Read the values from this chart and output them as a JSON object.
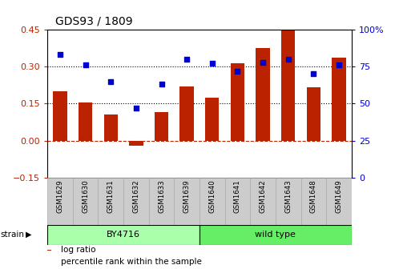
{
  "title": "GDS93 / 1809",
  "categories": [
    "GSM1629",
    "GSM1630",
    "GSM1631",
    "GSM1632",
    "GSM1633",
    "GSM1639",
    "GSM1640",
    "GSM1641",
    "GSM1642",
    "GSM1643",
    "GSM1648",
    "GSM1649"
  ],
  "log_ratio": [
    0.2,
    0.155,
    0.105,
    -0.02,
    0.115,
    0.22,
    0.175,
    0.315,
    0.375,
    0.455,
    0.215,
    0.335
  ],
  "percentile_rank": [
    83,
    76,
    65,
    47,
    63,
    80,
    77,
    72,
    78,
    80,
    70,
    76
  ],
  "bar_color": "#bb2200",
  "dot_color": "#0000cc",
  "ylim_left": [
    -0.15,
    0.45
  ],
  "ylim_right": [
    0,
    100
  ],
  "yticks_left": [
    -0.15,
    0,
    0.15,
    0.3,
    0.45
  ],
  "yticks_right": [
    0,
    25,
    50,
    75,
    100
  ],
  "hlines": [
    0.15,
    0.3
  ],
  "zero_line": 0,
  "strain_groups": [
    {
      "label": "BY4716",
      "start": 0,
      "end": 6,
      "color": "#aaffaa"
    },
    {
      "label": "wild type",
      "start": 6,
      "end": 12,
      "color": "#66ee66"
    }
  ],
  "strain_label": "strain",
  "legend_entries": [
    {
      "label": "log ratio",
      "color": "#bb2200"
    },
    {
      "label": "percentile rank within the sample",
      "color": "#0000cc"
    }
  ],
  "bg_color": "#ffffff",
  "plot_bg": "#ffffff",
  "tick_label_color_left": "#bb2200",
  "tick_label_color_right": "#0000cc",
  "title_fontsize": 10,
  "axis_fontsize": 8,
  "label_fontsize": 8,
  "xtick_bg": "#cccccc",
  "xtick_border": "#aaaaaa"
}
